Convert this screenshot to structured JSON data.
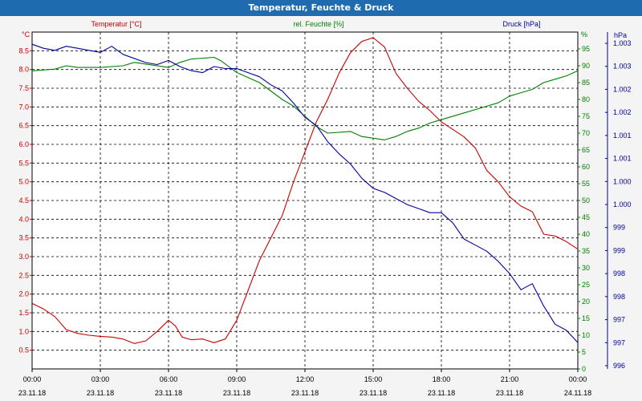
{
  "window": {
    "title": "Temperatur, Feuchte & Druck"
  },
  "chart_data": {
    "type": "line",
    "title": "Temperatur, Feuchte & Druck",
    "grid": true,
    "x": {
      "ticks": [
        {
          "time": "00:00",
          "date": "23.11.18"
        },
        {
          "time": "03:00",
          "date": "23.11.18"
        },
        {
          "time": "06:00",
          "date": "23.11.18"
        },
        {
          "time": "09:00",
          "date": "23.11.18"
        },
        {
          "time": "12:00",
          "date": "23.11.18"
        },
        {
          "time": "15:00",
          "date": "23.11.18"
        },
        {
          "time": "18:00",
          "date": "23.11.18"
        },
        {
          "time": "21:00",
          "date": "23.11.18"
        },
        {
          "time": "00:00",
          "date": "24.11.18"
        }
      ],
      "range_hours": [
        0,
        24
      ]
    },
    "axes": {
      "temperature": {
        "label": "Temperatur [°C]",
        "unit": "°C",
        "color": "#cc0000",
        "ylim": [
          0,
          9
        ],
        "tick_labels": [
          "0.5",
          "1.0",
          "1.5",
          "2.0",
          "2.5",
          "3.0",
          "3.5",
          "4.0",
          "4.5",
          "5.0",
          "5.5",
          "6.0",
          "6.5",
          "7.0",
          "7.5",
          "8.0",
          "8.5"
        ]
      },
      "humidity": {
        "label": "rel. Feuchte [%]",
        "unit": "%",
        "color": "#008000",
        "ylim": [
          0,
          100
        ],
        "tick_labels": [
          "0",
          "5",
          "10",
          "15",
          "20",
          "25",
          "30",
          "35",
          "40",
          "45",
          "50",
          "55",
          "60",
          "65",
          "70",
          "75",
          "80",
          "85",
          "90",
          "95"
        ]
      },
      "pressure": {
        "label": "Druck [hPa]",
        "unit": "hPa",
        "color": "#00009c",
        "ylim": [
          995.5,
          1003.8
        ],
        "tick_labels": [
          "996",
          "997",
          "997",
          "998",
          "998",
          "999",
          "999",
          "1.000",
          "1.000",
          "1.001",
          "1.001",
          "1.002",
          "1.002",
          "1.003",
          "1.003"
        ]
      }
    },
    "series": [
      {
        "name": "Temperatur [°C]",
        "axis": "temperature",
        "color": "#cc0000",
        "points": [
          [
            0,
            1.75
          ],
          [
            0.5,
            1.6
          ],
          [
            1,
            1.4
          ],
          [
            1.5,
            1.05
          ],
          [
            2,
            0.95
          ],
          [
            2.5,
            0.9
          ],
          [
            3,
            0.87
          ],
          [
            3.5,
            0.85
          ],
          [
            4,
            0.8
          ],
          [
            4.5,
            0.68
          ],
          [
            5,
            0.75
          ],
          [
            5.5,
            1.0
          ],
          [
            6,
            1.3
          ],
          [
            6.3,
            1.15
          ],
          [
            6.6,
            0.85
          ],
          [
            7,
            0.78
          ],
          [
            7.5,
            0.8
          ],
          [
            8,
            0.7
          ],
          [
            8.5,
            0.8
          ],
          [
            9,
            1.3
          ],
          [
            9.5,
            2.1
          ],
          [
            10,
            2.9
          ],
          [
            10.5,
            3.5
          ],
          [
            11,
            4.1
          ],
          [
            11.5,
            5.0
          ],
          [
            12,
            5.8
          ],
          [
            12.5,
            6.6
          ],
          [
            13,
            7.2
          ],
          [
            13.5,
            7.9
          ],
          [
            14,
            8.45
          ],
          [
            14.5,
            8.75
          ],
          [
            15,
            8.85
          ],
          [
            15.5,
            8.6
          ],
          [
            16,
            7.9
          ],
          [
            16.5,
            7.5
          ],
          [
            17,
            7.15
          ],
          [
            17.5,
            6.9
          ],
          [
            18,
            6.6
          ],
          [
            18.5,
            6.4
          ],
          [
            19,
            6.2
          ],
          [
            19.5,
            5.9
          ],
          [
            20,
            5.3
          ],
          [
            20.5,
            5.0
          ],
          [
            21,
            4.6
          ],
          [
            21.5,
            4.35
          ],
          [
            22,
            4.2
          ],
          [
            22.5,
            3.6
          ],
          [
            23,
            3.55
          ],
          [
            23.5,
            3.4
          ],
          [
            24,
            3.2
          ]
        ]
      },
      {
        "name": "rel. Feuchte [%]",
        "axis": "humidity",
        "color": "#008000",
        "points": [
          [
            0,
            88.5
          ],
          [
            1,
            89
          ],
          [
            1.5,
            90
          ],
          [
            2,
            89.5
          ],
          [
            3,
            89.5
          ],
          [
            4,
            90
          ],
          [
            4.5,
            91
          ],
          [
            5,
            90.5
          ],
          [
            6,
            89.5
          ],
          [
            6.5,
            91
          ],
          [
            7,
            92
          ],
          [
            8,
            92.5
          ],
          [
            8.3,
            91.5
          ],
          [
            9,
            88
          ],
          [
            10,
            85
          ],
          [
            11,
            80
          ],
          [
            11.5,
            78
          ],
          [
            12,
            75
          ],
          [
            12.5,
            72
          ],
          [
            13,
            70
          ],
          [
            14,
            70.5
          ],
          [
            14.5,
            69
          ],
          [
            15,
            68.5
          ],
          [
            15.5,
            68
          ],
          [
            16,
            69
          ],
          [
            16.5,
            70.5
          ],
          [
            17,
            71.5
          ],
          [
            17.5,
            73
          ],
          [
            18,
            74
          ],
          [
            19,
            76
          ],
          [
            20,
            78
          ],
          [
            20.5,
            79
          ],
          [
            21,
            81
          ],
          [
            21.5,
            82
          ],
          [
            22,
            83
          ],
          [
            22.5,
            85
          ],
          [
            23,
            86
          ],
          [
            23.5,
            87
          ],
          [
            24,
            88.5
          ]
        ]
      },
      {
        "name": "Druck [hPa]",
        "axis": "pressure",
        "color": "#00009c",
        "points": [
          [
            0,
            1003.5
          ],
          [
            0.5,
            1003.4
          ],
          [
            1,
            1003.35
          ],
          [
            1.5,
            1003.45
          ],
          [
            2,
            1003.4
          ],
          [
            2.5,
            1003.35
          ],
          [
            3,
            1003.3
          ],
          [
            3.5,
            1003.45
          ],
          [
            4,
            1003.25
          ],
          [
            5,
            1003.05
          ],
          [
            5.5,
            1003.0
          ],
          [
            6,
            1003.1
          ],
          [
            6.5,
            1002.95
          ],
          [
            7,
            1002.85
          ],
          [
            7.5,
            1002.8
          ],
          [
            8,
            1002.95
          ],
          [
            8.5,
            1002.9
          ],
          [
            9,
            1002.9
          ],
          [
            9.5,
            1002.8
          ],
          [
            10,
            1002.7
          ],
          [
            10.5,
            1002.5
          ],
          [
            11,
            1002.35
          ],
          [
            11.5,
            1002.05
          ],
          [
            12,
            1001.7
          ],
          [
            12.5,
            1001.5
          ],
          [
            13,
            1001.1
          ],
          [
            13.5,
            1000.8
          ],
          [
            14,
            1000.55
          ],
          [
            14.5,
            1000.2
          ],
          [
            15,
            999.95
          ],
          [
            15.5,
            999.85
          ],
          [
            16,
            999.7
          ],
          [
            16.5,
            999.55
          ],
          [
            17,
            999.45
          ],
          [
            17.5,
            999.35
          ],
          [
            18,
            999.35
          ],
          [
            18.5,
            999.1
          ],
          [
            19,
            998.7
          ],
          [
            19.5,
            998.55
          ],
          [
            20,
            998.4
          ],
          [
            20.5,
            998.15
          ],
          [
            21,
            997.85
          ],
          [
            21.5,
            997.45
          ],
          [
            22,
            997.6
          ],
          [
            22.5,
            997.05
          ],
          [
            23,
            996.6
          ],
          [
            23.5,
            996.45
          ],
          [
            24,
            996.15
          ]
        ]
      }
    ]
  }
}
